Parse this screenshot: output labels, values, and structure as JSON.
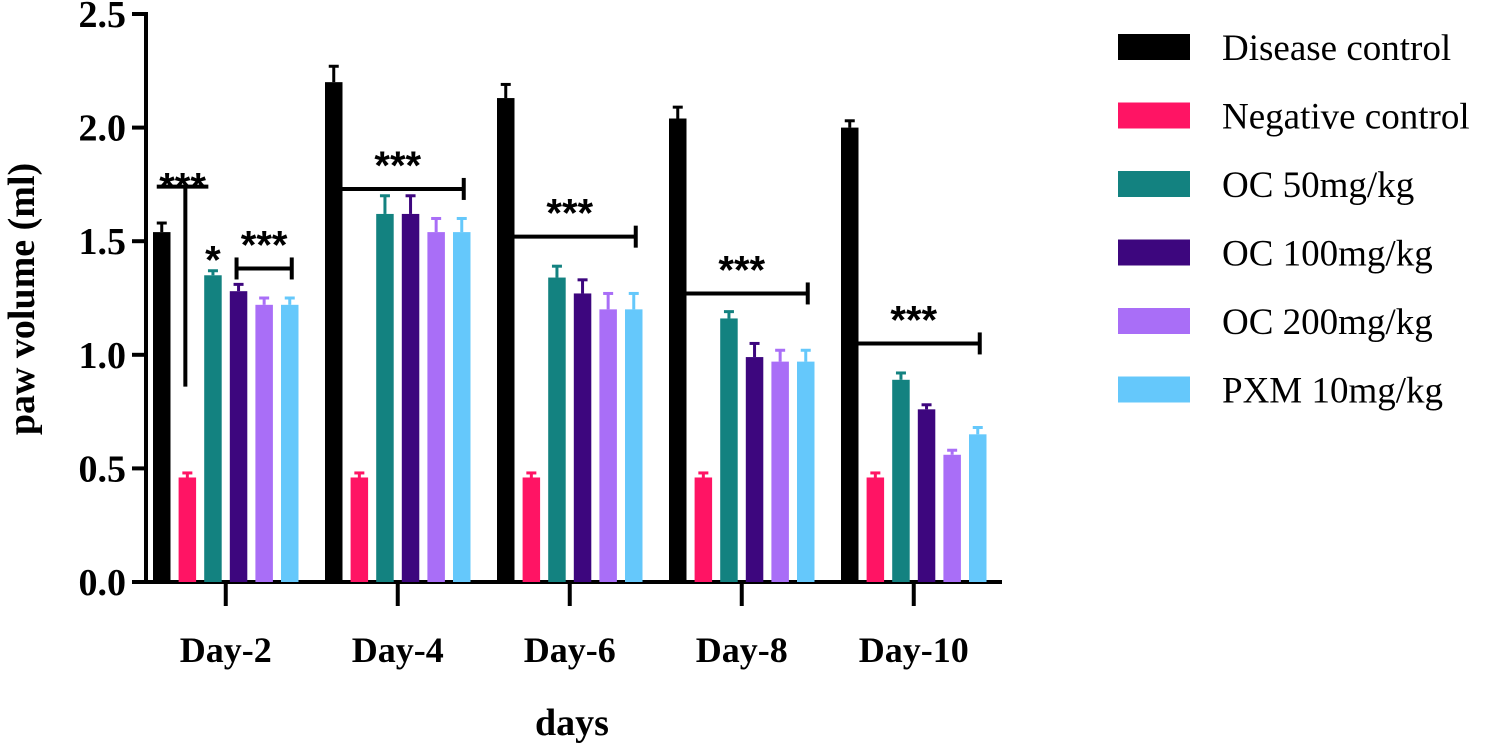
{
  "chart_data": {
    "type": "bar",
    "title": "",
    "xlabel": "days",
    "ylabel": "paw volume (ml)",
    "ylim": [
      0,
      2.5
    ],
    "yticks": [
      "0.0",
      "0.5",
      "1.0",
      "1.5",
      "2.0",
      "2.5"
    ],
    "categories": [
      "Day-2",
      "Day-4",
      "Day-6",
      "Day-8",
      "Day-10"
    ],
    "legend_position": "right",
    "series": [
      {
        "name": "Disease control",
        "color": "#000000",
        "values": [
          1.54,
          2.2,
          2.13,
          2.04,
          2.0
        ],
        "errors": [
          0.04,
          0.07,
          0.06,
          0.05,
          0.03
        ]
      },
      {
        "name": "Negative control",
        "color": "#ff1464",
        "values": [
          0.46,
          0.46,
          0.46,
          0.46,
          0.46
        ],
        "errors": [
          0.02,
          0.02,
          0.02,
          0.02,
          0.02
        ]
      },
      {
        "name": "OC 50mg/kg",
        "color": "#138280",
        "values": [
          1.35,
          1.62,
          1.34,
          1.16,
          0.89
        ],
        "errors": [
          0.02,
          0.08,
          0.05,
          0.03,
          0.03
        ]
      },
      {
        "name": "OC 100mg/kg",
        "color": "#3d067e",
        "values": [
          1.28,
          1.62,
          1.27,
          0.99,
          0.76
        ],
        "errors": [
          0.03,
          0.08,
          0.06,
          0.06,
          0.02
        ]
      },
      {
        "name": "OC 200mg/kg",
        "color": "#a96ef7",
        "values": [
          1.22,
          1.54,
          1.2,
          0.97,
          0.56
        ],
        "errors": [
          0.03,
          0.06,
          0.07,
          0.05,
          0.02
        ]
      },
      {
        "name": "PXM 10mg/kg",
        "color": "#65c8fb",
        "values": [
          1.22,
          1.54,
          1.2,
          0.97,
          0.65
        ],
        "errors": [
          0.03,
          0.06,
          0.07,
          0.05,
          0.03
        ]
      }
    ],
    "annotations": [
      {
        "type": "line",
        "category": "Day-2",
        "from_series": 0,
        "to_series": 1,
        "y": 1.74,
        "y_bottom": 0.86,
        "label": "***"
      },
      {
        "type": "label",
        "category": "Day-2",
        "series": 2,
        "y": 1.42,
        "label": "*"
      },
      {
        "type": "bracket",
        "category": "Day-2",
        "from_series": 3,
        "to_series": 5,
        "y": 1.38,
        "label": "***"
      },
      {
        "type": "bracket",
        "category": "Day-4",
        "from_series": 0,
        "to_series": 5,
        "y": 1.73,
        "label": "***"
      },
      {
        "type": "bracket",
        "category": "Day-6",
        "from_series": 0,
        "to_series": 5,
        "y": 1.52,
        "label": "***"
      },
      {
        "type": "bracket",
        "category": "Day-8",
        "from_series": 0,
        "to_series": 5,
        "y": 1.27,
        "label": "***"
      },
      {
        "type": "bracket",
        "category": "Day-10",
        "from_series": 0,
        "to_series": 5,
        "y": 1.05,
        "label": "***"
      }
    ]
  }
}
